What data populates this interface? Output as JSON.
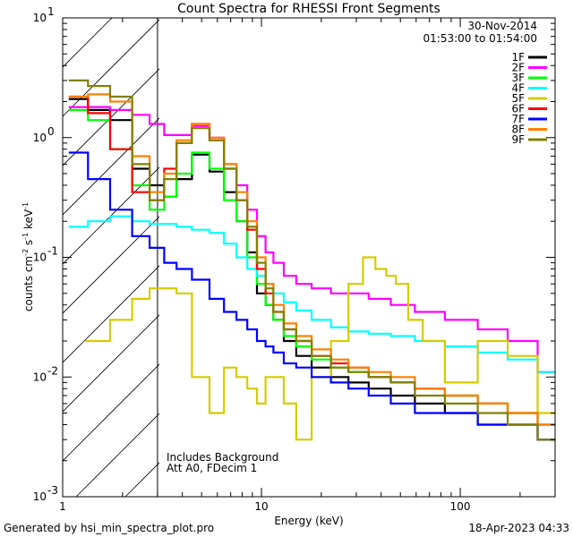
{
  "chart_data": {
    "type": "line",
    "title": "Count Spectra for RHESSI Front Segments",
    "xlabel": "Energy (keV)",
    "ylabel_parts": {
      "a": "counts cm",
      "b": "-2",
      "c": " s",
      "d": "-1",
      "e": " keV",
      "f": "-1"
    },
    "x_scale": "log",
    "y_scale": "log",
    "xlim": [
      1,
      300
    ],
    "ylim": [
      0.001,
      10
    ],
    "x_ticks": [
      {
        "value": 1,
        "label": "1"
      },
      {
        "value": 10,
        "label": "10"
      },
      {
        "value": 100,
        "label": "100"
      }
    ],
    "y_ticks": [
      {
        "value": 0.001,
        "base": "10",
        "exp": "-3"
      },
      {
        "value": 0.01,
        "base": "10",
        "exp": "-2"
      },
      {
        "value": 0.1,
        "base": "10",
        "exp": "-1"
      },
      {
        "value": 1,
        "base": "10",
        "exp": "0"
      },
      {
        "value": 10,
        "base": "10",
        "exp": "1"
      }
    ],
    "date": "30-Nov-2014",
    "time_range": "01:53:00 to 01:54:00",
    "attenuator_region_max_kev": 3,
    "annotations": [
      "Includes Background",
      "Att A0, FDecim 1"
    ],
    "footer_left": "Generated by hsi_min_spectra_plot.pro",
    "footer_right": "18-Apr-2023 04:33",
    "series": [
      {
        "name": "1F",
        "color": "#000000",
        "x": [
          1.2,
          1.5,
          2,
          2.5,
          3,
          3.5,
          4,
          5,
          6,
          7,
          8,
          9,
          10,
          11,
          12,
          14,
          16,
          20,
          25,
          30,
          40,
          50,
          70,
          100,
          150,
          200,
          300
        ],
        "y": [
          2.1,
          1.7,
          1.4,
          0.55,
          0.4,
          0.32,
          0.45,
          0.72,
          0.52,
          0.35,
          0.2,
          0.11,
          0.05,
          0.04,
          0.03,
          0.02,
          0.015,
          0.012,
          0.01,
          0.009,
          0.008,
          0.007,
          0.006,
          0.005,
          0.004,
          0.004,
          0.003
        ]
      },
      {
        "name": "2F",
        "color": "#ff00ff",
        "x": [
          1.2,
          1.5,
          2,
          2.5,
          3,
          3.5,
          4,
          5,
          6,
          7,
          8,
          9,
          10,
          11,
          12,
          14,
          16,
          20,
          25,
          30,
          40,
          50,
          70,
          100,
          150,
          200,
          300
        ],
        "y": [
          1.8,
          1.8,
          1.7,
          1.55,
          1.3,
          1.05,
          1.05,
          1.25,
          1.0,
          0.6,
          0.4,
          0.25,
          0.15,
          0.11,
          0.09,
          0.07,
          0.06,
          0.055,
          0.05,
          0.05,
          0.045,
          0.04,
          0.035,
          0.03,
          0.025,
          0.02,
          0.011
        ]
      },
      {
        "name": "3F",
        "color": "#00ff00",
        "x": [
          1.2,
          1.5,
          2,
          2.5,
          3,
          3.5,
          4,
          5,
          6,
          7,
          8,
          9,
          10,
          11,
          12,
          14,
          16,
          20,
          25,
          30,
          40,
          50,
          70,
          100,
          150,
          200,
          300
        ],
        "y": [
          1.7,
          1.4,
          0.8,
          0.4,
          0.25,
          0.32,
          0.5,
          0.75,
          0.55,
          0.3,
          0.2,
          0.1,
          0.06,
          0.04,
          0.03,
          0.022,
          0.018,
          0.014,
          0.012,
          0.011,
          0.01,
          0.009,
          0.008,
          0.007,
          0.006,
          0.005,
          0.004
        ]
      },
      {
        "name": "4F",
        "color": "#00ffff",
        "x": [
          1.2,
          1.5,
          2,
          2.5,
          3,
          3.5,
          4,
          5,
          6,
          7,
          8,
          9,
          10,
          11,
          12,
          14,
          16,
          20,
          25,
          30,
          40,
          50,
          70,
          100,
          150,
          200,
          300
        ],
        "y": [
          0.18,
          0.2,
          0.22,
          0.2,
          0.19,
          0.19,
          0.18,
          0.17,
          0.16,
          0.13,
          0.1,
          0.08,
          0.07,
          0.06,
          0.05,
          0.042,
          0.036,
          0.03,
          0.026,
          0.024,
          0.023,
          0.022,
          0.02,
          0.018,
          0.016,
          0.014,
          0.011
        ]
      },
      {
        "name": "5F",
        "color": "#d4cc00",
        "x": [
          1.5,
          2,
          2.5,
          3,
          3.5,
          4,
          5,
          6,
          7,
          8,
          9,
          10,
          11,
          12,
          14,
          16,
          20,
          25,
          30,
          35,
          40,
          45,
          50,
          60,
          70,
          100,
          150,
          200,
          300
        ],
        "y": [
          0.02,
          0.03,
          0.045,
          0.055,
          0.055,
          0.05,
          0.01,
          0.005,
          0.012,
          0.01,
          0.008,
          0.006,
          0.01,
          0.01,
          0.006,
          0.003,
          0.01,
          0.02,
          0.06,
          0.1,
          0.08,
          0.07,
          0.06,
          0.03,
          0.02,
          0.009,
          0.02,
          0.015,
          0.005
        ]
      },
      {
        "name": "6F",
        "color": "#ff0000",
        "x": [
          1.2,
          1.5,
          2,
          2.5,
          3,
          3.5,
          4,
          5,
          6,
          7,
          8,
          9,
          10,
          11,
          12,
          14,
          16,
          20,
          25,
          30,
          40,
          50,
          70,
          100,
          150,
          200,
          300
        ],
        "y": [
          2.2,
          1.6,
          0.8,
          0.35,
          0.3,
          0.55,
          0.9,
          1.3,
          0.95,
          0.55,
          0.3,
          0.17,
          0.08,
          0.05,
          0.035,
          0.025,
          0.02,
          0.015,
          0.013,
          0.012,
          0.01,
          0.009,
          0.008,
          0.007,
          0.006,
          0.005,
          0.004
        ]
      },
      {
        "name": "7F",
        "color": "#0000ff",
        "x": [
          1.2,
          1.5,
          2,
          2.5,
          3,
          3.5,
          4,
          5,
          6,
          7,
          8,
          9,
          10,
          11,
          12,
          14,
          16,
          20,
          25,
          30,
          40,
          50,
          70,
          100,
          150,
          200,
          300
        ],
        "y": [
          0.75,
          0.45,
          0.25,
          0.15,
          0.12,
          0.09,
          0.08,
          0.065,
          0.045,
          0.035,
          0.03,
          0.025,
          0.02,
          0.018,
          0.016,
          0.013,
          0.012,
          0.01,
          0.009,
          0.008,
          0.007,
          0.006,
          0.005,
          0.005,
          0.004,
          0.004,
          0.003
        ]
      },
      {
        "name": "8F",
        "color": "#ff8000",
        "x": [
          1.2,
          1.5,
          2,
          2.5,
          3,
          3.5,
          4,
          5,
          6,
          7,
          8,
          9,
          10,
          11,
          12,
          14,
          16,
          20,
          25,
          30,
          40,
          50,
          70,
          100,
          150,
          200,
          300
        ],
        "y": [
          2.2,
          2.3,
          2.0,
          0.7,
          0.35,
          0.5,
          0.95,
          1.3,
          1.0,
          0.6,
          0.35,
          0.2,
          0.1,
          0.06,
          0.04,
          0.028,
          0.022,
          0.017,
          0.014,
          0.012,
          0.011,
          0.01,
          0.008,
          0.007,
          0.006,
          0.005,
          0.004
        ]
      },
      {
        "name": "9F",
        "color": "#808000",
        "x": [
          1.2,
          1.5,
          2,
          2.5,
          3,
          3.5,
          4,
          5,
          6,
          7,
          8,
          9,
          10,
          11,
          12,
          14,
          16,
          20,
          25,
          30,
          40,
          50,
          70,
          100,
          150,
          200,
          300
        ],
        "y": [
          3.0,
          2.7,
          2.2,
          0.6,
          0.3,
          0.45,
          0.9,
          1.2,
          0.95,
          0.55,
          0.3,
          0.18,
          0.09,
          0.055,
          0.035,
          0.025,
          0.02,
          0.015,
          0.012,
          0.011,
          0.01,
          0.009,
          0.007,
          0.006,
          0.005,
          0.004,
          0.003
        ]
      }
    ]
  }
}
